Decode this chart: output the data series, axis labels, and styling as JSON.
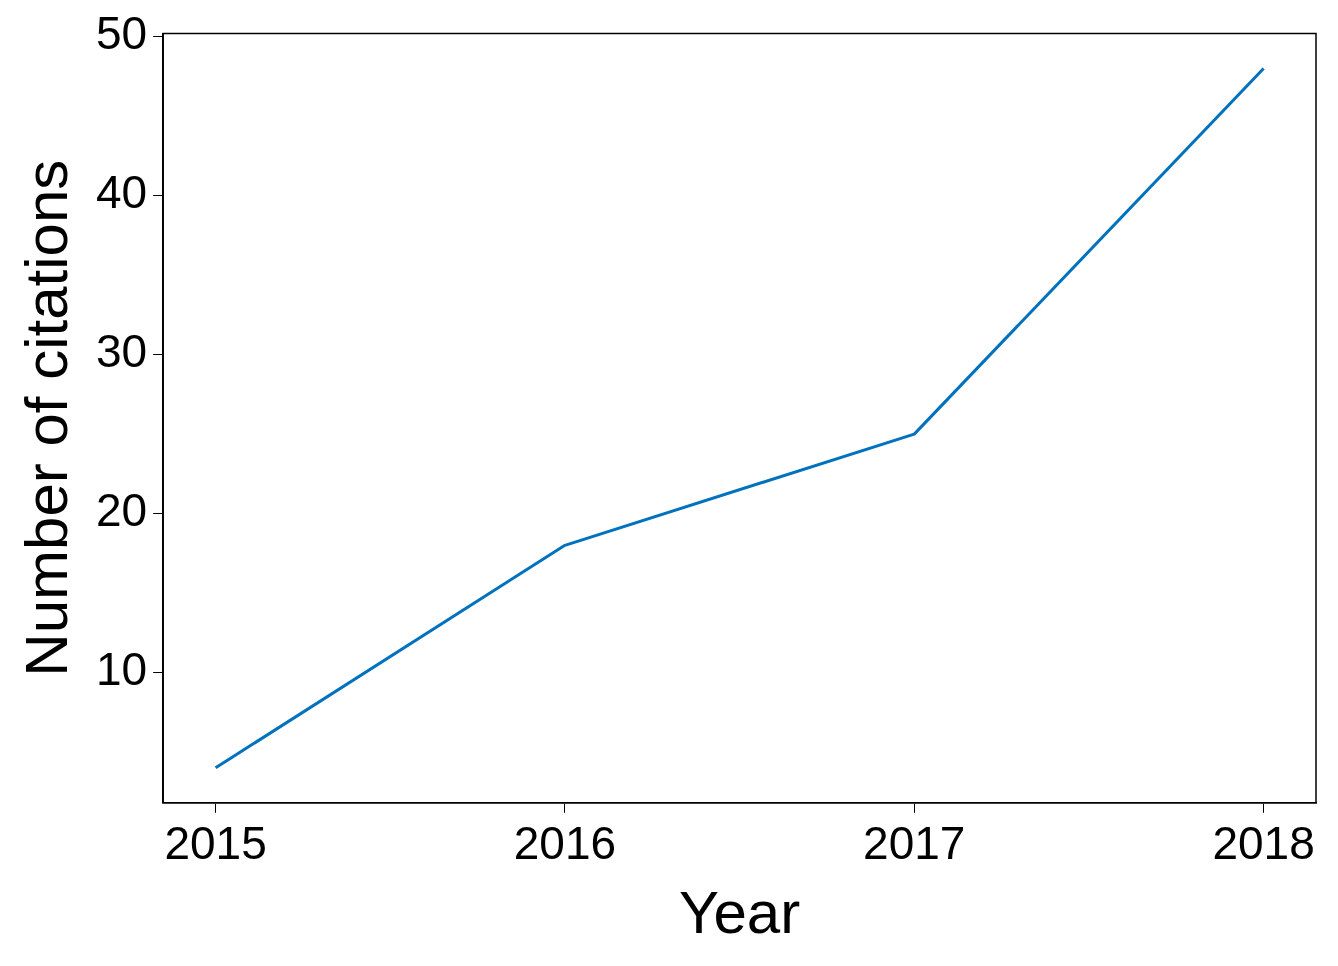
{
  "chart_data": {
    "type": "line",
    "xlabel": "Year",
    "ylabel": "Number of citations",
    "x": [
      2015,
      2016,
      2017,
      2018
    ],
    "series": [
      {
        "color": "#0072bd",
        "values": [
          4,
          18,
          25,
          48
        ]
      }
    ],
    "xlim": [
      2014.85,
      2018.15
    ],
    "xticks": [
      2015,
      2016,
      2017,
      2018
    ],
    "ylim": [
      1.8,
      50.2
    ],
    "yticks": [
      10,
      20,
      30,
      40,
      50
    ],
    "grid": false,
    "legend": false,
    "marker": "none",
    "line_style": "solid"
  }
}
